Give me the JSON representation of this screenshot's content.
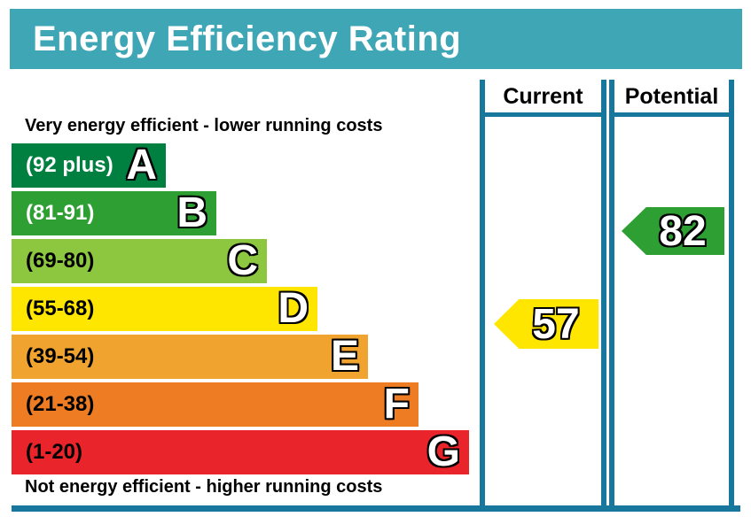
{
  "title": "Energy Efficiency Rating",
  "columns": {
    "current": "Current",
    "potential": "Potential"
  },
  "captions": {
    "top": "Very energy efficient - lower running costs",
    "bottom": "Not energy efficient - higher running costs"
  },
  "bands": [
    {
      "letter": "A",
      "range": "(92 plus)",
      "color": "#008040",
      "range_text_color": "#ffffff"
    },
    {
      "letter": "B",
      "range": "(81-91)",
      "color": "#2E9F33",
      "range_text_color": "#ffffff"
    },
    {
      "letter": "C",
      "range": "(69-80)",
      "color": "#8DC63F",
      "range_text_color": "#000000"
    },
    {
      "letter": "D",
      "range": "(55-68)",
      "color": "#FFE600",
      "range_text_color": "#000000"
    },
    {
      "letter": "E",
      "range": "(39-54)",
      "color": "#F0A32F",
      "range_text_color": "#000000"
    },
    {
      "letter": "F",
      "range": "(21-38)",
      "color": "#ED7C23",
      "range_text_color": "#000000"
    },
    {
      "letter": "G",
      "range": "(1-20)",
      "color": "#E9242B",
      "range_text_color": "#000000"
    }
  ],
  "ratings": {
    "current": {
      "value": "57",
      "band": "D",
      "color": "#FFE600"
    },
    "potential": {
      "value": "82",
      "band": "B",
      "color": "#2E9F33"
    }
  },
  "theme": {
    "header_bg": "#3EA6B5",
    "frame_color": "#17779C",
    "title_text_color": "#ffffff"
  },
  "chart_data": {
    "type": "bar",
    "title": "Energy Efficiency Rating",
    "orientation": "horizontal",
    "categories": [
      "A",
      "B",
      "C",
      "D",
      "E",
      "F",
      "G"
    ],
    "category_ranges": [
      "92 plus",
      "81-91",
      "69-80",
      "55-68",
      "39-54",
      "21-38",
      "1-20"
    ],
    "bar_relative_lengths": [
      1,
      2,
      3,
      4,
      5,
      6,
      7
    ],
    "bar_colors": [
      "#008040",
      "#2E9F33",
      "#8DC63F",
      "#FFE600",
      "#F0A32F",
      "#ED7C23",
      "#E9242B"
    ],
    "annotations": [
      "Very energy efficient - lower running costs",
      "Not energy efficient - higher running costs"
    ],
    "markers": [
      {
        "name": "Current",
        "value": 57,
        "band": "D",
        "color": "#FFE600"
      },
      {
        "name": "Potential",
        "value": 82,
        "band": "B",
        "color": "#2E9F33"
      }
    ],
    "scale": [
      1,
      100
    ],
    "legend_position": "top-right-columns"
  }
}
